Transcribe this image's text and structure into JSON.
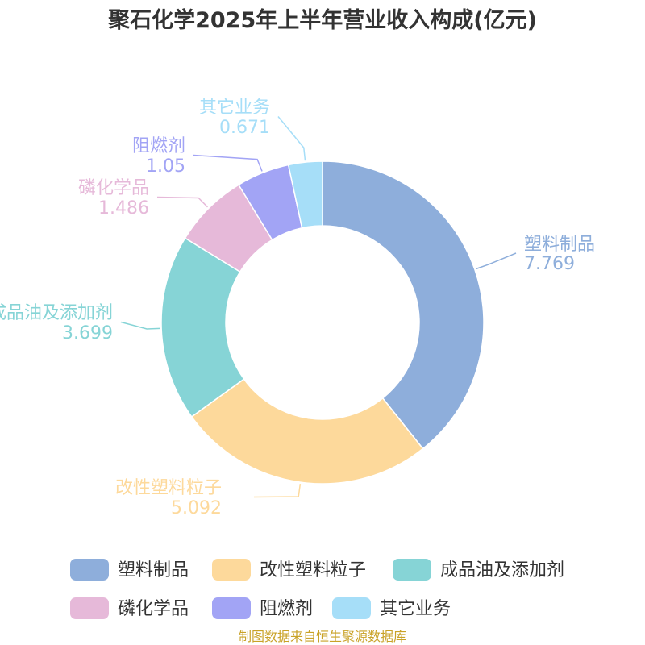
{
  "chart_data": {
    "type": "pie",
    "title": "聚石化学2025年上半年营业收入构成(亿元)",
    "series": [
      {
        "name": "塑料制品",
        "value": 7.769,
        "value_label": "7.769",
        "color": "#8eaedb"
      },
      {
        "name": "改性塑料粒子",
        "value": 5.092,
        "value_label": "5.092",
        "color": "#fdd99b"
      },
      {
        "name": "成品油及添加剂",
        "value": 3.699,
        "value_label": "3.699",
        "color": "#86d4d6"
      },
      {
        "name": "磷化学品",
        "value": 1.486,
        "value_label": "1.486",
        "color": "#e6b9d9"
      },
      {
        "name": "阻燃剂",
        "value": 1.05,
        "value_label": "1.05",
        "color": "#a2a4f5"
      },
      {
        "name": "其它业务",
        "value": 0.671,
        "value_label": "0.671",
        "color": "#a6def8"
      }
    ],
    "legend_position": "bottom",
    "donut": true
  },
  "source_note": "制图数据来自恒生聚源数据库"
}
